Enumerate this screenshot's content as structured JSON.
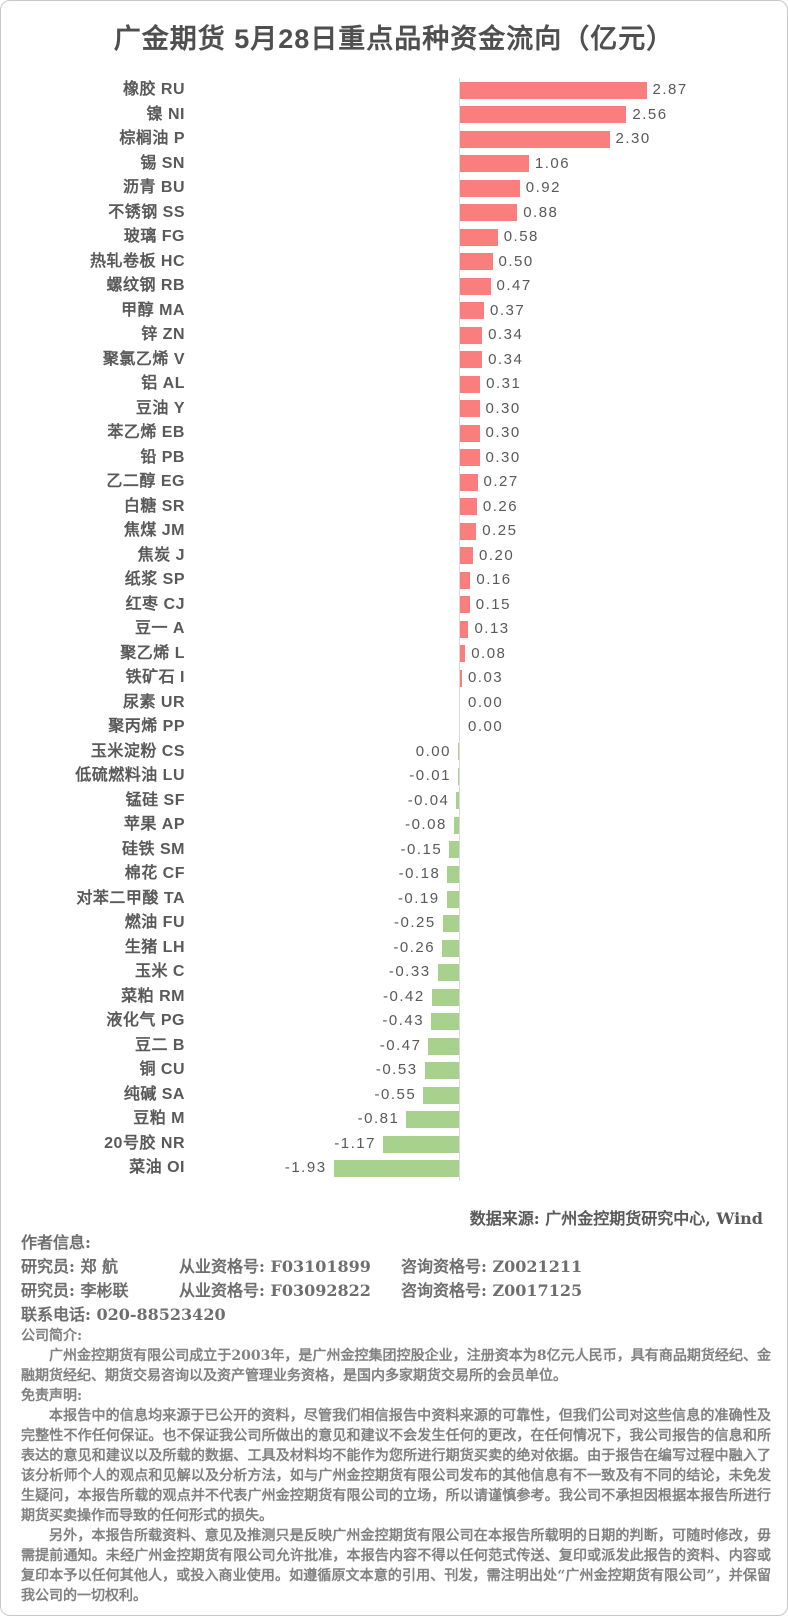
{
  "chart_data": {
    "type": "bar",
    "orientation": "horizontal",
    "title": "广金期货 5月28日重点品种资金流向（亿元）",
    "value_unit": "亿元",
    "xlim": [
      -1.93,
      2.87
    ],
    "grid": false,
    "legend": "none",
    "positive_color": "#FA7E7E",
    "negative_color": "#A9D18E",
    "axis_line_color": "#D9D9D9",
    "items": [
      {
        "name": "橡胶 RU",
        "value": 2.87,
        "label": "2.87"
      },
      {
        "name": "镍 NI",
        "value": 2.56,
        "label": "2.56"
      },
      {
        "name": "棕榈油 P",
        "value": 2.3,
        "label": "2.30"
      },
      {
        "name": "锡 SN",
        "value": 1.06,
        "label": "1.06"
      },
      {
        "name": "沥青 BU",
        "value": 0.92,
        "label": "0.92"
      },
      {
        "name": "不锈钢 SS",
        "value": 0.88,
        "label": "0.88"
      },
      {
        "name": "玻璃 FG",
        "value": 0.58,
        "label": "0.58"
      },
      {
        "name": "热轧卷板 HC",
        "value": 0.5,
        "label": "0.50"
      },
      {
        "name": "螺纹钢 RB",
        "value": 0.47,
        "label": "0.47"
      },
      {
        "name": "甲醇 MA",
        "value": 0.37,
        "label": "0.37"
      },
      {
        "name": "锌 ZN",
        "value": 0.34,
        "label": "0.34"
      },
      {
        "name": "聚氯乙烯 V",
        "value": 0.34,
        "label": "0.34"
      },
      {
        "name": "铝 AL",
        "value": 0.31,
        "label": "0.31"
      },
      {
        "name": "豆油 Y",
        "value": 0.3,
        "label": "0.30"
      },
      {
        "name": "苯乙烯 EB",
        "value": 0.3,
        "label": "0.30"
      },
      {
        "name": "铅 PB",
        "value": 0.3,
        "label": "0.30"
      },
      {
        "name": "乙二醇 EG",
        "value": 0.27,
        "label": "0.27"
      },
      {
        "name": "白糖 SR",
        "value": 0.26,
        "label": "0.26"
      },
      {
        "name": "焦煤 JM",
        "value": 0.25,
        "label": "0.25"
      },
      {
        "name": "焦炭 J",
        "value": 0.2,
        "label": "0.20"
      },
      {
        "name": "纸浆 SP",
        "value": 0.16,
        "label": "0.16"
      },
      {
        "name": "红枣 CJ",
        "value": 0.15,
        "label": "0.15"
      },
      {
        "name": "豆一 A",
        "value": 0.13,
        "label": "0.13"
      },
      {
        "name": "聚乙烯 L",
        "value": 0.08,
        "label": "0.08"
      },
      {
        "name": "铁矿石 I",
        "value": 0.03,
        "label": "0.03"
      },
      {
        "name": "尿素 UR",
        "value": 0.0,
        "label": "0.00"
      },
      {
        "name": "聚丙烯 PP",
        "value": 0.0,
        "label": "0.00"
      },
      {
        "name": "玉米淀粉 CS",
        "value": -0.004,
        "label": "0.00"
      },
      {
        "name": "低硫燃料油 LU",
        "value": -0.01,
        "label": "-0.01"
      },
      {
        "name": "锰硅 SF",
        "value": -0.04,
        "label": "-0.04"
      },
      {
        "name": "苹果 AP",
        "value": -0.08,
        "label": "-0.08"
      },
      {
        "name": "硅铁 SM",
        "value": -0.15,
        "label": "-0.15"
      },
      {
        "name": "棉花 CF",
        "value": -0.18,
        "label": "-0.18"
      },
      {
        "name": "对苯二甲酸 TA",
        "value": -0.19,
        "label": "-0.19"
      },
      {
        "name": "燃油 FU",
        "value": -0.25,
        "label": "-0.25"
      },
      {
        "name": "生猪 LH",
        "value": -0.26,
        "label": "-0.26"
      },
      {
        "name": "玉米 C",
        "value": -0.33,
        "label": "-0.33"
      },
      {
        "name": "菜粕 RM",
        "value": -0.42,
        "label": "-0.42"
      },
      {
        "name": "液化气 PG",
        "value": -0.43,
        "label": "-0.43"
      },
      {
        "name": "豆二 B",
        "value": -0.47,
        "label": "-0.47"
      },
      {
        "name": "铜 CU",
        "value": -0.53,
        "label": "-0.53"
      },
      {
        "name": "纯碱 SA",
        "value": -0.55,
        "label": "-0.55"
      },
      {
        "name": "豆粕 M",
        "value": -0.81,
        "label": "-0.81"
      },
      {
        "name": "20号胶 NR",
        "value": -1.17,
        "label": "-1.17"
      },
      {
        "name": "菜油 OI",
        "value": -1.93,
        "label": "-1.93"
      }
    ]
  },
  "footer": {
    "source": "数据来源: 广州金控期货研究中心, Wind",
    "author_heading": "作者信息:",
    "researchers": [
      {
        "role": "研究员: 郑 航",
        "practice": "从业资格号: F03101899",
        "advisory": "咨询资格号: Z0021211"
      },
      {
        "role": "研究员: 李彬联",
        "practice": "从业资格号: F03092822",
        "advisory": "咨询资格号: Z0017125"
      }
    ],
    "phone": "联系电话: 020-88523420",
    "company_heading": "公司简介:",
    "company_text": "广州金控期货有限公司成立于2003年，是广州金控集团控股企业，注册资本为8亿元人民币，具有商品期货经纪、金融期货经纪、期货交易咨询以及资产管理业务资格，是国内多家期货交易所的会员单位。",
    "disclaimer_heading": "免责声明:",
    "disclaimer_paragraphs": [
      "本报告中的信息均来源于已公开的资料，尽管我们相信报告中资料来源的可靠性，但我们公司对这些信息的准确性及完整性不作任何保证。也不保证我公司所做出的意见和建议不会发生任何的更改，在任何情况下，我公司报告的信息和所表达的意见和建议以及所载的数据、工具及材料均不能作为您所进行期货买卖的绝对依据。由于报告在编写过程中融入了该分析师个人的观点和见解以及分析方法，如与广州金控期货有限公司发布的其他信息有不一致及有不同的结论，未免发生疑问，本报告所载的观点并不代表广州金控期货有限公司的立场，所以请谨慎参考。我公司不承担因根据本报告所进行期货买卖操作而导致的任何形式的损失。",
      "另外，本报告所载资料、意见及推测只是反映广州金控期货有限公司在本报告所载明的日期的判断，可随时修改，毋需提前通知。未经广州金控期货有限公司允许批准，本报告内容不得以任何范式传送、复印或派发此报告的资料、内容或复印本予以任何其他人，或投入商业使用。如遵循原文本意的引用、刊发，需注明出处“广州金控期货有限公司”，并保留我公司的一切权利。"
    ]
  }
}
